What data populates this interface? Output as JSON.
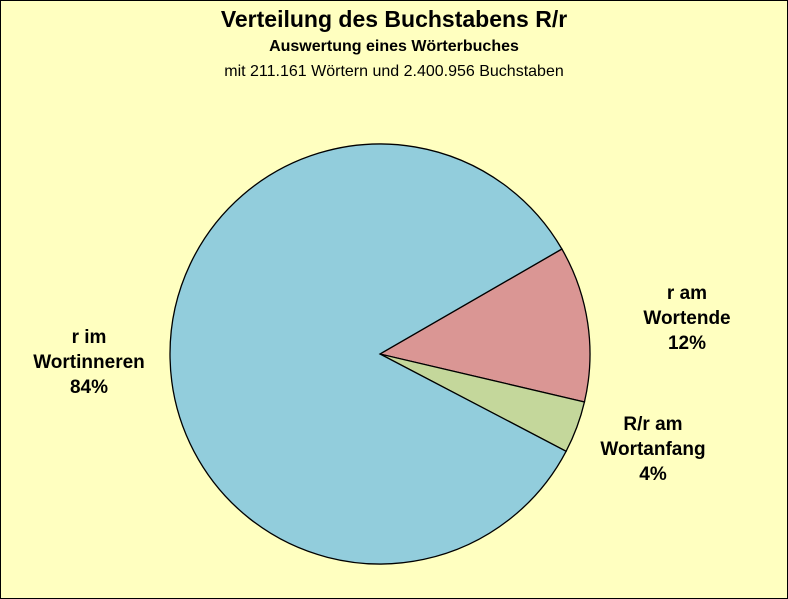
{
  "chart_data": {
    "type": "pie",
    "title": "Verteilung des Buchstabens R/r",
    "subtitle": "Auswertung eines Wörterbuches",
    "subtitle2": "mit 211.161 Wörtern und 2.400.956 Buchstaben",
    "slices": [
      {
        "lines": [
          "r am",
          "Wortende",
          "12%"
        ],
        "value": 12,
        "color": "#DA9694"
      },
      {
        "lines": [
          "R/r am",
          "Wortanfang",
          "4%"
        ],
        "value": 4,
        "color": "#C4D79B"
      },
      {
        "lines": [
          "r im",
          "Wortinneren",
          "84%"
        ],
        "value": 84,
        "color": "#92CDDC"
      }
    ]
  }
}
